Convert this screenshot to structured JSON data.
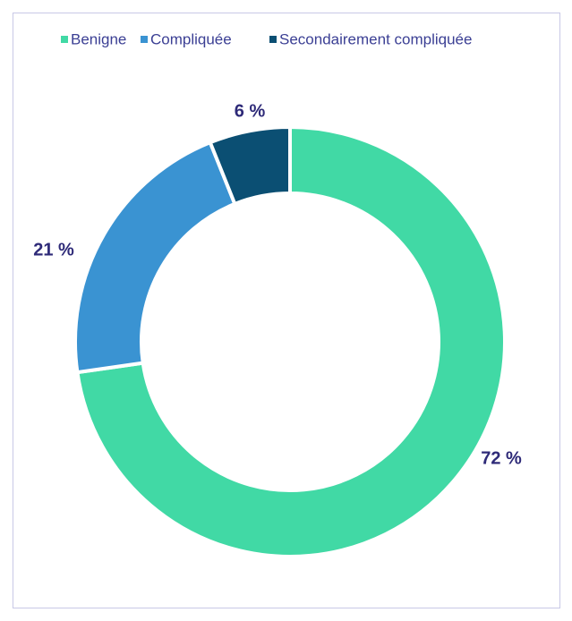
{
  "chart_data": {
    "type": "donut",
    "categories": [
      "Benigne",
      "Compliquée",
      "Secondairement compliquée"
    ],
    "values": [
      72,
      21,
      6
    ],
    "value_labels": [
      "72 %",
      "21 %",
      "6 %"
    ],
    "colors": [
      "#41d9a5",
      "#3a93d2",
      "#0b4f73"
    ],
    "legend": "top"
  }
}
